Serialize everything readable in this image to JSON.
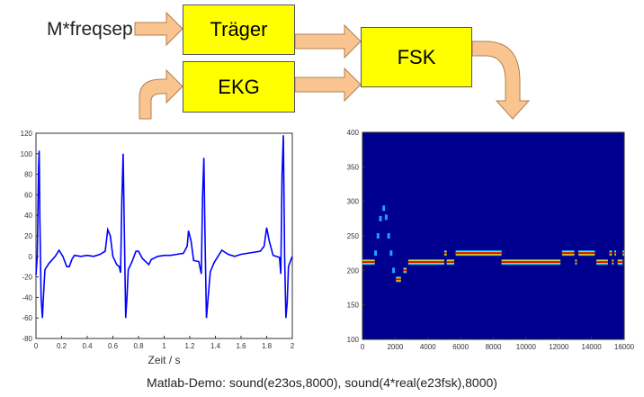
{
  "diagram": {
    "input_label": "M*freqsep",
    "boxes": {
      "carrier": "Träger",
      "ecg": "EKG",
      "fsk": "FSK"
    },
    "box_color": "#ffff00",
    "arrow_color": "#f9c48f"
  },
  "caption": "Matlab-Demo:  sound(e23os,8000), sound(4*real(e23fsk),8000)",
  "chart_data": [
    {
      "type": "line",
      "xlabel": "Zeit / s",
      "ylabel": "",
      "xlim": [
        0,
        2
      ],
      "ylim": [
        -80,
        120
      ],
      "xticks": [
        "0",
        "0.2",
        "0.4",
        "0.6",
        "0.8",
        "1",
        "1.2",
        "1.4",
        "1.6",
        "1.8",
        "2"
      ],
      "yticks": [
        "-80",
        "-60",
        "-40",
        "-20",
        "0",
        "20",
        "40",
        "60",
        "80",
        "100",
        "120"
      ],
      "color": "#0000ff",
      "x": [
        0,
        0.01,
        0.02,
        0.025,
        0.03,
        0.04,
        0.05,
        0.06,
        0.07,
        0.1,
        0.15,
        0.18,
        0.21,
        0.24,
        0.26,
        0.28,
        0.3,
        0.35,
        0.4,
        0.45,
        0.5,
        0.54,
        0.56,
        0.58,
        0.6,
        0.63,
        0.65,
        0.66,
        0.67,
        0.68,
        0.69,
        0.7,
        0.71,
        0.72,
        0.75,
        0.78,
        0.8,
        0.83,
        0.88,
        0.9,
        0.95,
        1.0,
        1.05,
        1.1,
        1.15,
        1.18,
        1.19,
        1.21,
        1.23,
        1.27,
        1.29,
        1.3,
        1.31,
        1.32,
        1.33,
        1.34,
        1.36,
        1.39,
        1.42,
        1.45,
        1.5,
        1.55,
        1.6,
        1.65,
        1.7,
        1.75,
        1.78,
        1.8,
        1.82,
        1.85,
        1.9,
        1.91,
        1.92,
        1.93,
        1.94,
        1.95,
        1.96,
        1.97,
        1.99,
        2.0
      ],
      "y": [
        -18,
        0,
        85,
        103,
        40,
        -40,
        -60,
        -35,
        -13,
        -7,
        0,
        6,
        0,
        -10,
        -10,
        -3,
        1,
        0,
        1,
        0,
        2,
        5,
        26,
        20,
        0,
        -8,
        -10,
        -16,
        55,
        100,
        20,
        -60,
        -40,
        -13,
        -5,
        5,
        5,
        -2,
        -8,
        -3,
        0,
        1,
        1,
        2,
        3,
        10,
        25,
        15,
        -4,
        -5,
        -17,
        60,
        96,
        10,
        -60,
        -45,
        -15,
        -6,
        0,
        6,
        2,
        0,
        2,
        3,
        4,
        5,
        10,
        28,
        15,
        1,
        -1,
        -17,
        80,
        118,
        0,
        -60,
        -45,
        -10,
        -3,
        0
      ]
    },
    {
      "type": "heatmap",
      "xlim": [
        0,
        16000
      ],
      "ylim": [
        100,
        400
      ],
      "xticks": [
        "0",
        "2000",
        "4000",
        "6000",
        "8000",
        "10000",
        "12000",
        "14000",
        "16000"
      ],
      "yticks": [
        "100",
        "150",
        "200",
        "250",
        "300",
        "350",
        "400"
      ],
      "background": "#00008f",
      "segments": [
        [
          0,
          750,
          212
        ],
        [
          2050,
          2350,
          187
        ],
        [
          2500,
          2700,
          200
        ],
        [
          2800,
          5000,
          212
        ],
        [
          5000,
          5150,
          225
        ],
        [
          5150,
          5600,
          212
        ],
        [
          5700,
          8500,
          225
        ],
        [
          8500,
          12100,
          212
        ],
        [
          12200,
          12950,
          225
        ],
        [
          13000,
          13100,
          212
        ],
        [
          13200,
          14200,
          225
        ],
        [
          14300,
          15000,
          212
        ],
        [
          15100,
          15250,
          225
        ],
        [
          15250,
          15350,
          212
        ],
        [
          15400,
          15500,
          225
        ],
        [
          15600,
          15900,
          212
        ],
        [
          15900,
          16000,
          225
        ]
      ],
      "sweep": [
        [
          800,
          225
        ],
        [
          950,
          250
        ],
        [
          1100,
          275
        ],
        [
          1300,
          290
        ],
        [
          1450,
          277
        ],
        [
          1600,
          250
        ],
        [
          1750,
          225
        ],
        [
          1900,
          200
        ]
      ]
    }
  ]
}
